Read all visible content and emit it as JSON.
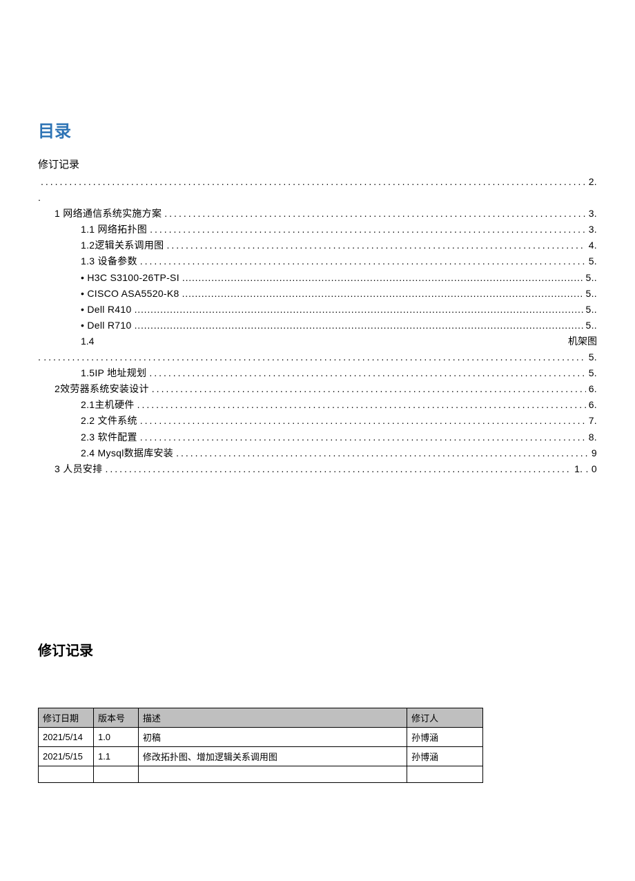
{
  "colors": {
    "title": "#2e74b5",
    "heading": "#000000",
    "text": "#000000",
    "th_bg": "#bfbfbf",
    "border": "#000000",
    "bg": "#ffffff"
  },
  "title": "目录",
  "toc_header": "修订记录",
  "toc_header_page": "2.",
  "toc": [
    {
      "indent": 1,
      "label": "1 网络通信系统实施方案",
      "page": "3.",
      "style": "sparse"
    },
    {
      "indent": 2,
      "label": "1.1  网络拓扑图",
      "page": "3.",
      "style": "sparse"
    },
    {
      "indent": 2,
      "label": "1.2逻辑关系调用图",
      "page": "4.",
      "style": "sparse"
    },
    {
      "indent": 2,
      "label": "1.3 设备参数",
      "page": "5.",
      "style": "sparse"
    },
    {
      "indent": 3,
      "label": "• H3C S3100-26TP-SI",
      "page": "5..",
      "style": "tight"
    },
    {
      "indent": 3,
      "label": "• CISCO ASA5520-K8",
      "page": "5..",
      "style": "tight"
    },
    {
      "indent": 3,
      "label": "• Dell R410",
      "page": "5..",
      "style": "tight"
    },
    {
      "indent": 3,
      "label": "• Dell R710",
      "page": "5..",
      "style": "tight"
    },
    {
      "indent": 2,
      "label": "1.4",
      "page_label": "机架图",
      "page": "5.",
      "style": "split"
    },
    {
      "indent": 2,
      "label": "1.5IP 地址规划",
      "page": "5.",
      "style": "sparse"
    },
    {
      "indent": 1,
      "label": "2效劳器系统安装设计",
      "page": "6.",
      "style": "sparse"
    },
    {
      "indent": 2,
      "label": "2.1主机硬件",
      "page": "6.",
      "style": "sparse"
    },
    {
      "indent": 2,
      "label": "2.2  文件系统",
      "page": "7.",
      "style": "sparse"
    },
    {
      "indent": 2,
      "label": "2.3  软件配置",
      "page": "8.",
      "style": "sparse"
    },
    {
      "indent": 2,
      "label": "2.4  Mysql数据库安装",
      "page": "9",
      "style": "sparse"
    },
    {
      "indent": 1,
      "label": "3 人员安排",
      "page": "1. . 0",
      "style": "sparse"
    }
  ],
  "revision": {
    "heading": "修订记录",
    "columns": [
      "修订日期",
      "版本号",
      "描述",
      "修订人"
    ],
    "rows": [
      [
        "2021/5/14",
        "1.0",
        "初稿",
        "孙博涵"
      ],
      [
        "2021/5/15",
        "1.1",
        "修改拓扑图、增加逻辑关系调用图",
        "孙博涵"
      ],
      [
        "",
        "",
        "",
        ""
      ]
    ]
  }
}
